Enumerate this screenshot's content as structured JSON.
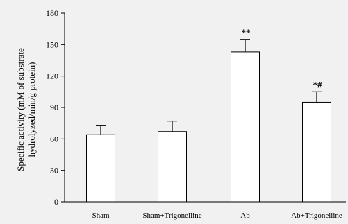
{
  "chart_data": {
    "type": "bar",
    "title": "",
    "xlabel": "",
    "ylabel_lines": [
      "Specific activity (mM of substrate",
      "hydrolyzed/min/g protein)"
    ],
    "ylim": [
      0,
      180
    ],
    "yticks": [
      0,
      30,
      60,
      90,
      120,
      150,
      180
    ],
    "categories": [
      "Sham",
      "Sham+Trigonelline",
      "Ab",
      "Ab+Trigonelline"
    ],
    "values": [
      64,
      67,
      143,
      95
    ],
    "errors": [
      9,
      10,
      12,
      10
    ],
    "annotations": [
      "",
      "",
      "**",
      "*#"
    ],
    "grid": false,
    "bar_color": "#ffffff",
    "background_color": "#f1f1f1",
    "stroke_color": "#000000"
  }
}
